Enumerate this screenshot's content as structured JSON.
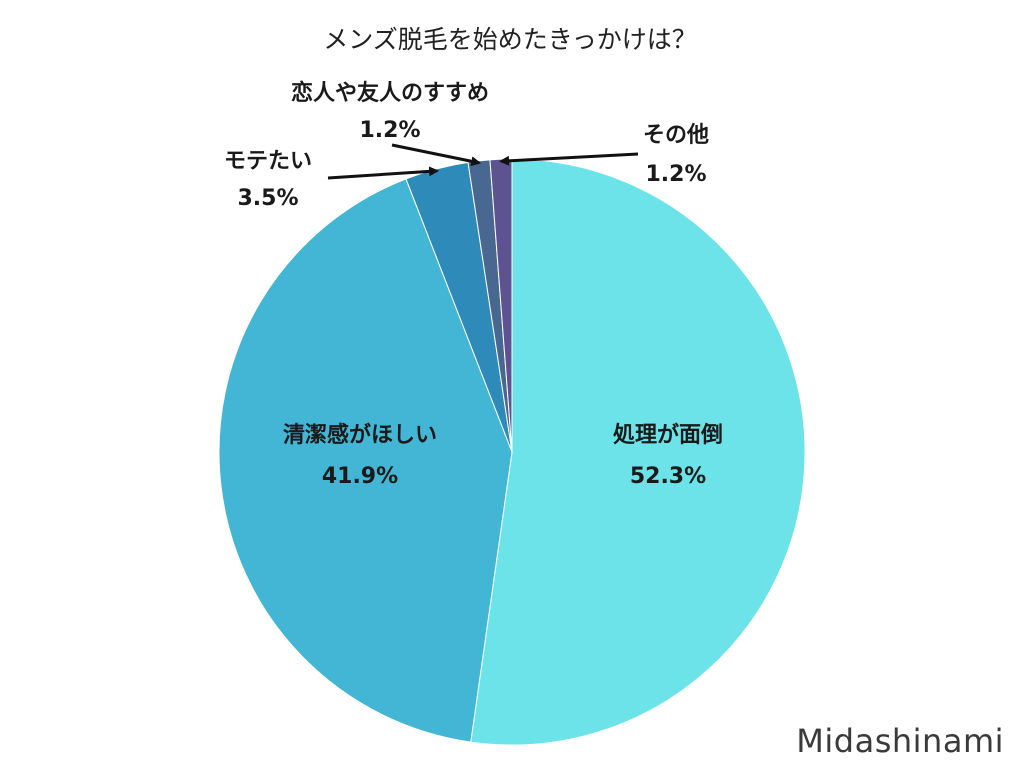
{
  "chart_data": {
    "type": "pie",
    "title": "メンズ脱毛を始めたきっかけは？",
    "unit": "%",
    "start": "12 o'clock",
    "direction": "clockwise",
    "slices": [
      {
        "label": "処理が面倒",
        "value": 52.3,
        "value_label": "52.3%",
        "color": "#6ce3e8",
        "label_placement": "inside"
      },
      {
        "label": "清潔感がほしい",
        "value": 41.9,
        "value_label": "41.9%",
        "color": "#43b6d6",
        "label_placement": "inside"
      },
      {
        "label": "モテたい",
        "value": 3.5,
        "value_label": "3.5%",
        "color": "#2d8ab9",
        "label_placement": "outside-arrow"
      },
      {
        "label": "恋人や友人のすすめ",
        "value": 1.2,
        "value_label": "1.2%",
        "color": "#486892",
        "label_placement": "outside-arrow"
      },
      {
        "label": "その他",
        "value": 1.2,
        "value_label": "1.2%",
        "color": "#5d5390",
        "label_placement": "outside-arrow"
      }
    ]
  },
  "watermark": "Midashinami"
}
